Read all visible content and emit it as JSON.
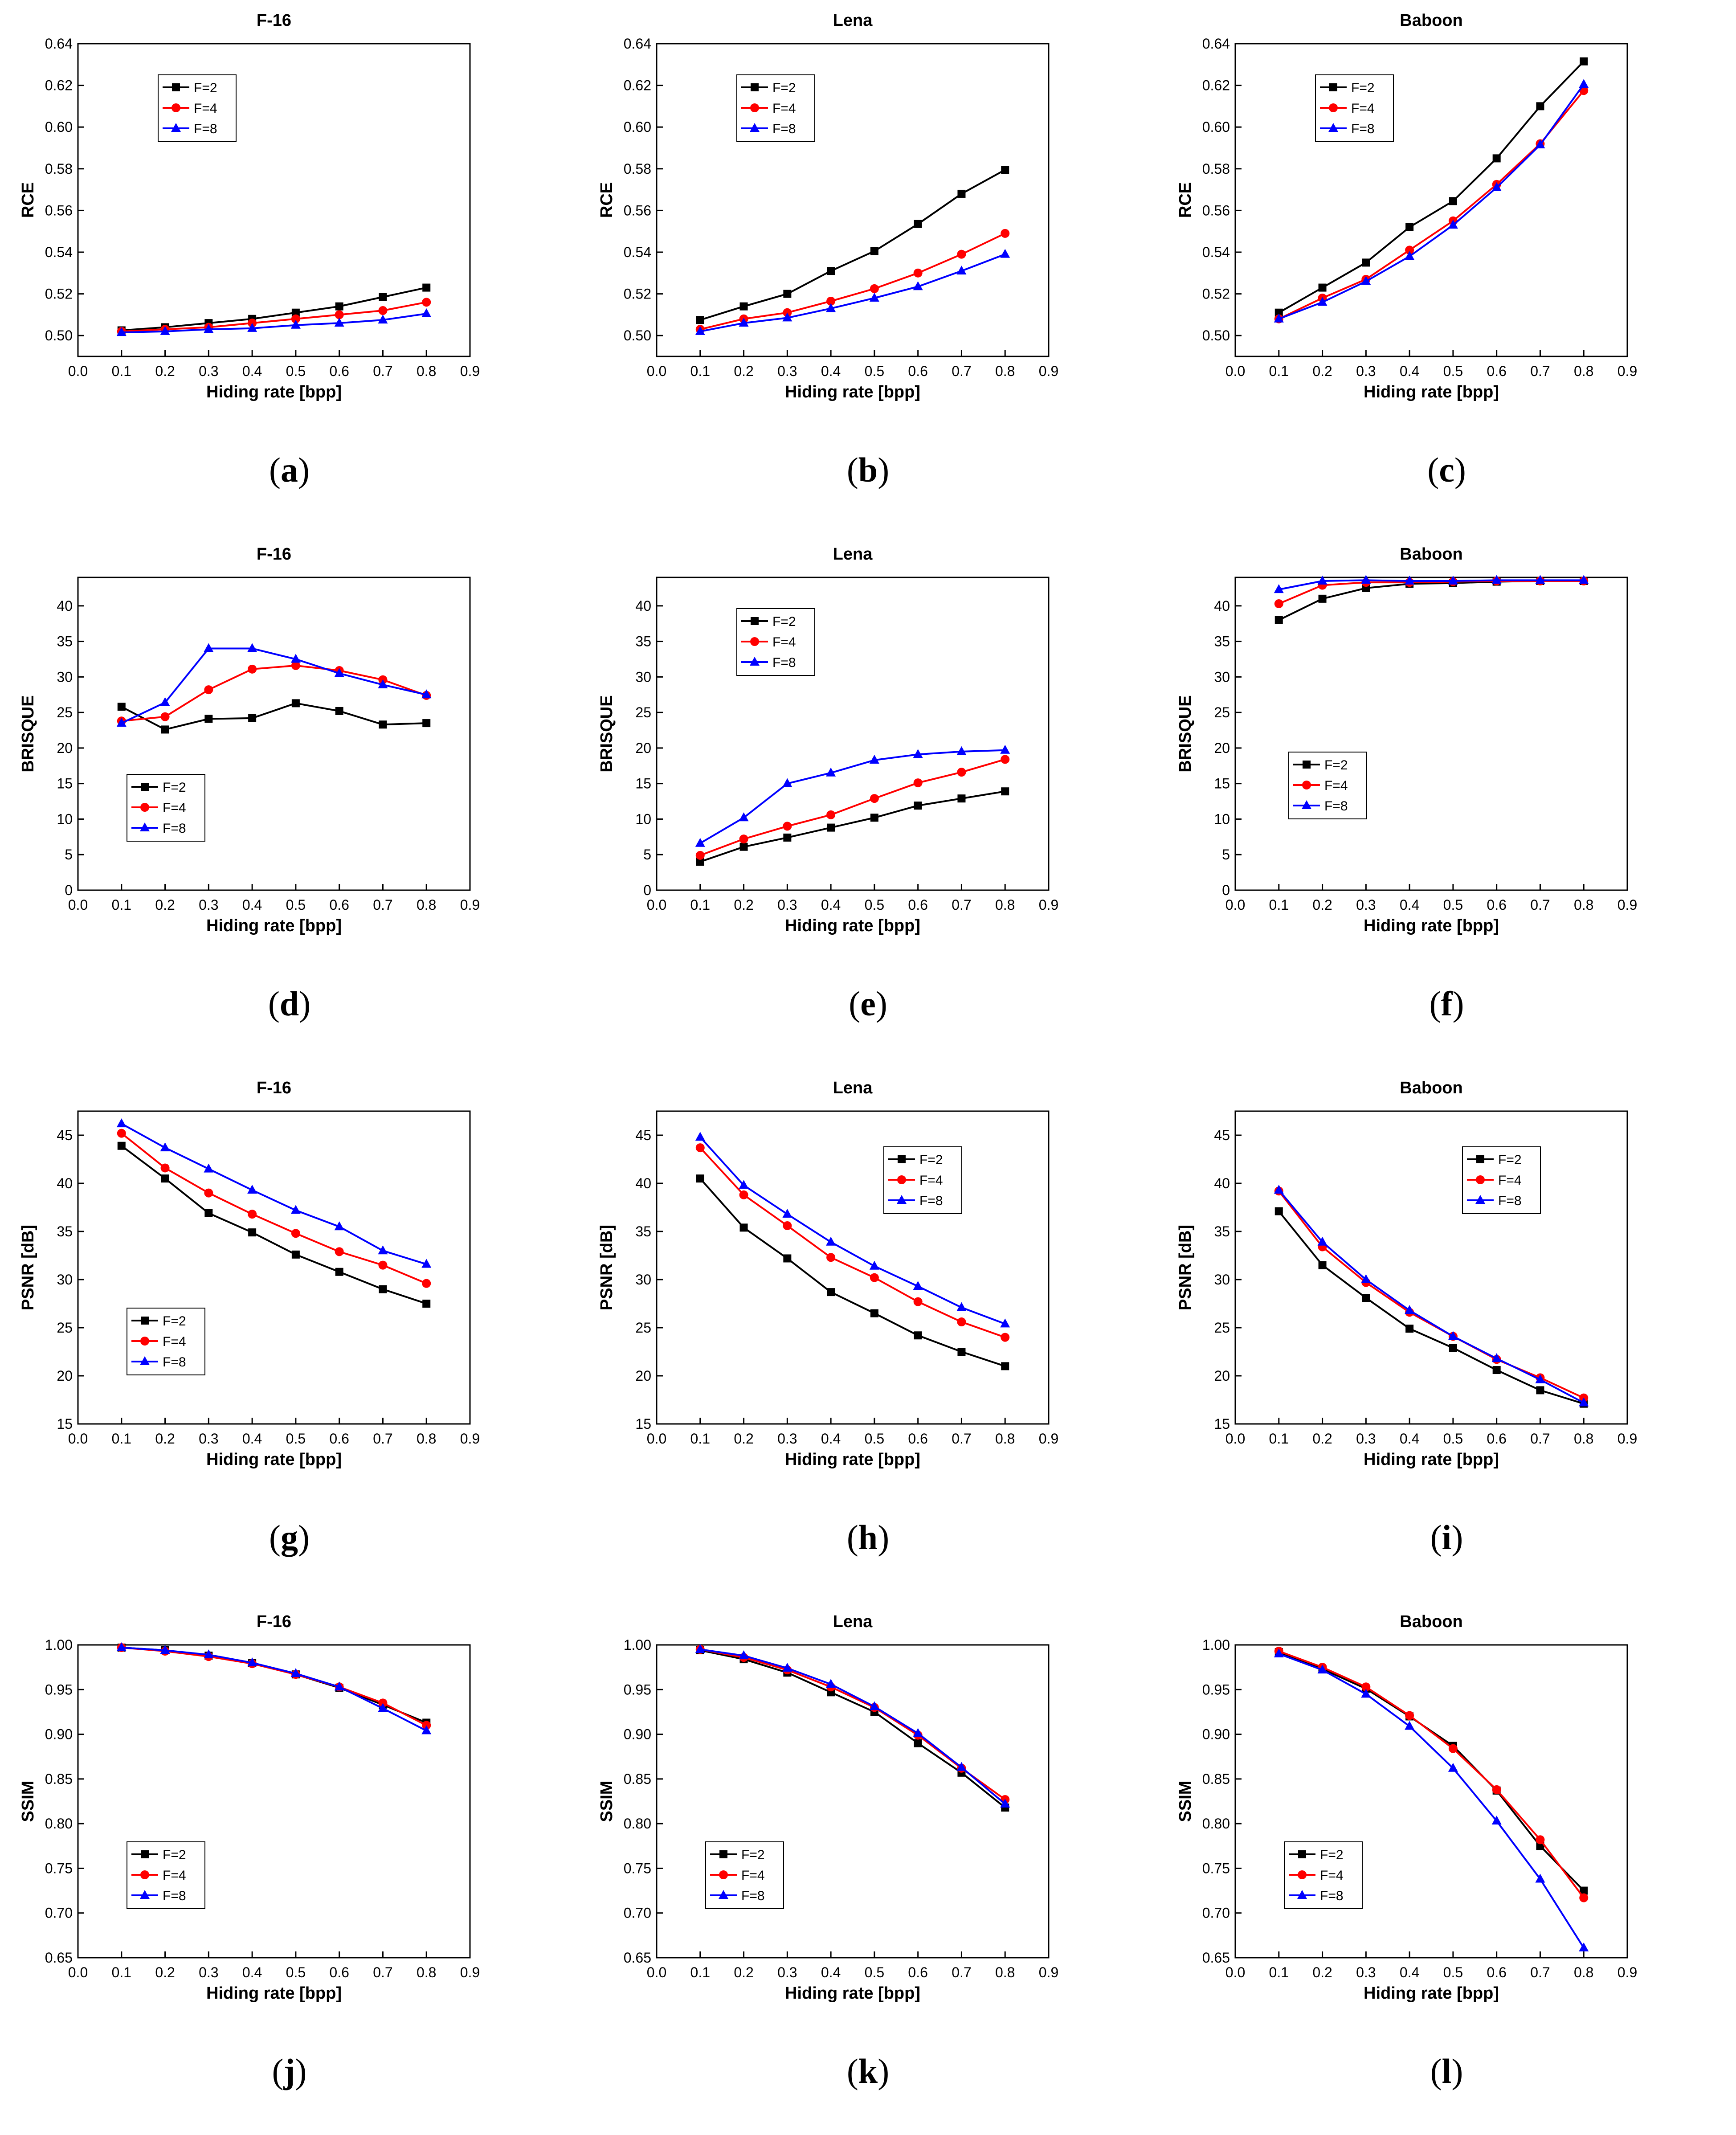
{
  "figure": {
    "series_names": [
      "F=2",
      "F=4",
      "F=8"
    ],
    "series_colors": [
      "#000000",
      "#ff0000",
      "#0000ff"
    ],
    "series_markers": [
      "square",
      "circle",
      "triangle"
    ]
  },
  "chart_data": [
    {
      "id": "a",
      "caption": "a",
      "type": "line",
      "title": "F-16",
      "xlabel": "Hiding rate [bpp]",
      "ylabel": "RCE",
      "xlim": [
        0,
        0.9
      ],
      "ylim": [
        0.49,
        0.64
      ],
      "xticks": [
        "0.0",
        "0.1",
        "0.2",
        "0.3",
        "0.4",
        "0.5",
        "0.6",
        "0.7",
        "0.8",
        "0.9"
      ],
      "yticks": [
        "0.50",
        "0.52",
        "0.54",
        "0.56",
        "0.58",
        "0.60",
        "0.62",
        "0.64"
      ],
      "legend": "top-left",
      "x": [
        0.1,
        0.2,
        0.3,
        0.4,
        0.5,
        0.6,
        0.7,
        0.8
      ],
      "series": [
        {
          "name": "F=2",
          "values": [
            0.5025,
            0.504,
            0.506,
            0.508,
            0.511,
            0.514,
            0.5185,
            0.523
          ]
        },
        {
          "name": "F=4",
          "values": [
            0.502,
            0.503,
            0.504,
            0.506,
            0.508,
            0.51,
            0.512,
            0.516
          ]
        },
        {
          "name": "F=8",
          "values": [
            0.5015,
            0.502,
            0.503,
            0.5035,
            0.505,
            0.506,
            0.5075,
            0.5105
          ]
        }
      ]
    },
    {
      "id": "b",
      "caption": "b",
      "type": "line",
      "title": "Lena",
      "xlabel": "Hiding rate [bpp]",
      "ylabel": "RCE",
      "xlim": [
        0,
        0.9
      ],
      "ylim": [
        0.49,
        0.64
      ],
      "xticks": [
        "0.0",
        "0.1",
        "0.2",
        "0.3",
        "0.4",
        "0.5",
        "0.6",
        "0.7",
        "0.8",
        "0.9"
      ],
      "yticks": [
        "0.50",
        "0.52",
        "0.54",
        "0.56",
        "0.58",
        "0.60",
        "0.62",
        "0.64"
      ],
      "legend": "top-left",
      "x": [
        0.1,
        0.2,
        0.3,
        0.4,
        0.5,
        0.6,
        0.7,
        0.8
      ],
      "series": [
        {
          "name": "F=2",
          "values": [
            0.5075,
            0.514,
            0.52,
            0.531,
            0.5405,
            0.5535,
            0.568,
            0.5795
          ]
        },
        {
          "name": "F=4",
          "values": [
            0.503,
            0.508,
            0.511,
            0.5165,
            0.5225,
            0.53,
            0.539,
            0.549
          ]
        },
        {
          "name": "F=8",
          "values": [
            0.502,
            0.506,
            0.5085,
            0.513,
            0.518,
            0.5235,
            0.531,
            0.539
          ]
        }
      ]
    },
    {
      "id": "c",
      "caption": "c",
      "type": "line",
      "title": "Baboon",
      "xlabel": "Hiding rate [bpp]",
      "ylabel": "RCE",
      "xlim": [
        0,
        0.9
      ],
      "ylim": [
        0.49,
        0.64
      ],
      "xticks": [
        "0.0",
        "0.1",
        "0.2",
        "0.3",
        "0.4",
        "0.5",
        "0.6",
        "0.7",
        "0.8",
        "0.9"
      ],
      "yticks": [
        "0.50",
        "0.52",
        "0.54",
        "0.56",
        "0.58",
        "0.60",
        "0.62",
        "0.64"
      ],
      "legend": "top-left",
      "x": [
        0.1,
        0.2,
        0.3,
        0.4,
        0.5,
        0.6,
        0.7,
        0.8
      ],
      "series": [
        {
          "name": "F=2",
          "values": [
            0.511,
            0.523,
            0.535,
            0.552,
            0.5645,
            0.585,
            0.61,
            0.6315
          ]
        },
        {
          "name": "F=4",
          "values": [
            0.508,
            0.518,
            0.527,
            0.541,
            0.555,
            0.5725,
            0.592,
            0.6175
          ]
        },
        {
          "name": "F=8",
          "values": [
            0.508,
            0.516,
            0.526,
            0.538,
            0.553,
            0.571,
            0.5915,
            0.6205
          ]
        }
      ]
    },
    {
      "id": "d",
      "caption": "d",
      "type": "line",
      "title": "F-16",
      "xlabel": "Hiding rate [bpp]",
      "ylabel": "BRISQUE",
      "xlim": [
        0,
        0.9
      ],
      "ylim": [
        0,
        44
      ],
      "xticks": [
        "0.0",
        "0.1",
        "0.2",
        "0.3",
        "0.4",
        "0.5",
        "0.6",
        "0.7",
        "0.8",
        "0.9"
      ],
      "yticks": [
        "0",
        "5",
        "10",
        "15",
        "20",
        "25",
        "30",
        "35",
        "40"
      ],
      "legend": "bottom-left",
      "x": [
        0.1,
        0.2,
        0.3,
        0.4,
        0.5,
        0.6,
        0.7,
        0.8
      ],
      "series": [
        {
          "name": "F=2",
          "values": [
            25.8,
            22.6,
            24.1,
            24.2,
            26.3,
            25.2,
            23.3,
            23.5
          ]
        },
        {
          "name": "F=4",
          "values": [
            23.8,
            24.4,
            28.2,
            31.1,
            31.6,
            30.9,
            29.6,
            27.4
          ]
        },
        {
          "name": "F=8",
          "values": [
            23.5,
            26.4,
            34.0,
            34.0,
            32.5,
            30.5,
            28.9,
            27.5
          ]
        }
      ]
    },
    {
      "id": "e",
      "caption": "e",
      "type": "line",
      "title": "Lena",
      "xlabel": "Hiding rate [bpp]",
      "ylabel": "BRISQUE",
      "xlim": [
        0,
        0.9
      ],
      "ylim": [
        0,
        44
      ],
      "xticks": [
        "0.0",
        "0.1",
        "0.2",
        "0.3",
        "0.4",
        "0.5",
        "0.6",
        "0.7",
        "0.8",
        "0.9"
      ],
      "yticks": [
        "0",
        "5",
        "10",
        "15",
        "20",
        "25",
        "30",
        "35",
        "40"
      ],
      "legend": "top-left",
      "x": [
        0.1,
        0.2,
        0.3,
        0.4,
        0.5,
        0.6,
        0.7,
        0.8
      ],
      "series": [
        {
          "name": "F=2",
          "values": [
            4.0,
            6.1,
            7.4,
            8.8,
            10.2,
            11.9,
            12.9,
            13.9
          ]
        },
        {
          "name": "F=4",
          "values": [
            4.9,
            7.2,
            9.0,
            10.6,
            12.9,
            15.1,
            16.6,
            18.4
          ]
        },
        {
          "name": "F=8",
          "values": [
            6.6,
            10.2,
            15.0,
            16.5,
            18.3,
            19.1,
            19.5,
            19.7
          ]
        }
      ]
    },
    {
      "id": "f",
      "caption": "f",
      "type": "line",
      "title": "Baboon",
      "xlabel": "Hiding rate [bpp]",
      "ylabel": "BRISQUE",
      "xlim": [
        0,
        0.9
      ],
      "ylim": [
        0,
        44
      ],
      "xticks": [
        "0.0",
        "0.1",
        "0.2",
        "0.3",
        "0.4",
        "0.5",
        "0.6",
        "0.7",
        "0.8",
        "0.9"
      ],
      "yticks": [
        "0",
        "5",
        "10",
        "15",
        "20",
        "25",
        "30",
        "35",
        "40"
      ],
      "legend": "bottom-left",
      "x": [
        0.1,
        0.2,
        0.3,
        0.4,
        0.5,
        0.6,
        0.7,
        0.8
      ],
      "series": [
        {
          "name": "F=2",
          "values": [
            38.0,
            41.0,
            42.5,
            43.1,
            43.2,
            43.4,
            43.5,
            43.5
          ]
        },
        {
          "name": "F=4",
          "values": [
            40.3,
            42.9,
            43.3,
            43.3,
            43.4,
            43.5,
            43.5,
            43.5
          ]
        },
        {
          "name": "F=8",
          "values": [
            42.3,
            43.5,
            43.6,
            43.5,
            43.5,
            43.6,
            43.6,
            43.6
          ]
        }
      ]
    },
    {
      "id": "g",
      "caption": "g",
      "type": "line",
      "title": "F-16",
      "xlabel": "Hiding rate [bpp]",
      "ylabel": "PSNR [dB]",
      "xlim": [
        0,
        0.9
      ],
      "ylim": [
        15,
        47.5
      ],
      "xticks": [
        "0.0",
        "0.1",
        "0.2",
        "0.3",
        "0.4",
        "0.5",
        "0.6",
        "0.7",
        "0.8",
        "0.9"
      ],
      "yticks": [
        "15",
        "20",
        "25",
        "30",
        "35",
        "40",
        "45"
      ],
      "legend": "bottom-left",
      "x": [
        0.1,
        0.2,
        0.3,
        0.4,
        0.5,
        0.6,
        0.7,
        0.8
      ],
      "series": [
        {
          "name": "F=2",
          "values": [
            43.9,
            40.5,
            36.9,
            34.9,
            32.6,
            30.8,
            29.0,
            27.5
          ]
        },
        {
          "name": "F=4",
          "values": [
            45.2,
            41.6,
            39.0,
            36.8,
            34.8,
            32.9,
            31.5,
            29.6
          ]
        },
        {
          "name": "F=8",
          "values": [
            46.2,
            43.7,
            41.5,
            39.3,
            37.2,
            35.5,
            33.0,
            31.6
          ]
        }
      ]
    },
    {
      "id": "h",
      "caption": "h",
      "type": "line",
      "title": "Lena",
      "xlabel": "Hiding rate [bpp]",
      "ylabel": "PSNR [dB]",
      "xlim": [
        0,
        0.9
      ],
      "ylim": [
        15,
        47.5
      ],
      "xticks": [
        "0.0",
        "0.1",
        "0.2",
        "0.3",
        "0.4",
        "0.5",
        "0.6",
        "0.7",
        "0.8",
        "0.9"
      ],
      "yticks": [
        "15",
        "20",
        "25",
        "30",
        "35",
        "40",
        "45"
      ],
      "legend": "top-right",
      "x": [
        0.1,
        0.2,
        0.3,
        0.4,
        0.5,
        0.6,
        0.7,
        0.8
      ],
      "series": [
        {
          "name": "F=2",
          "values": [
            40.5,
            35.4,
            32.2,
            28.7,
            26.5,
            24.2,
            22.5,
            21.0
          ]
        },
        {
          "name": "F=4",
          "values": [
            43.7,
            38.8,
            35.6,
            32.3,
            30.2,
            27.7,
            25.6,
            24.0
          ]
        },
        {
          "name": "F=8",
          "values": [
            44.8,
            39.8,
            36.8,
            33.9,
            31.4,
            29.3,
            27.1,
            25.4
          ]
        }
      ]
    },
    {
      "id": "i",
      "caption": "i",
      "type": "line",
      "title": "Baboon",
      "xlabel": "Hiding rate [bpp]",
      "ylabel": "PSNR [dB]",
      "xlim": [
        0,
        0.9
      ],
      "ylim": [
        15,
        47.5
      ],
      "xticks": [
        "0.0",
        "0.1",
        "0.2",
        "0.3",
        "0.4",
        "0.5",
        "0.6",
        "0.7",
        "0.8",
        "0.9"
      ],
      "yticks": [
        "15",
        "20",
        "25",
        "30",
        "35",
        "40",
        "45"
      ],
      "legend": "top-right",
      "x": [
        0.1,
        0.2,
        0.3,
        0.4,
        0.5,
        0.6,
        0.7,
        0.8
      ],
      "series": [
        {
          "name": "F=2",
          "values": [
            37.1,
            31.5,
            28.1,
            24.9,
            22.9,
            20.6,
            18.5,
            17.1
          ]
        },
        {
          "name": "F=4",
          "values": [
            39.2,
            33.4,
            29.7,
            26.6,
            24.1,
            21.7,
            19.8,
            17.7
          ]
        },
        {
          "name": "F=8",
          "values": [
            39.3,
            33.9,
            30.0,
            26.8,
            24.1,
            21.8,
            19.6,
            17.2
          ]
        }
      ]
    },
    {
      "id": "j",
      "caption": "j",
      "type": "line",
      "title": "F-16",
      "xlabel": "Hiding rate [bpp]",
      "ylabel": "SSIM",
      "xlim": [
        0,
        0.9
      ],
      "ylim": [
        0.65,
        1.0
      ],
      "xticks": [
        "0.0",
        "0.1",
        "0.2",
        "0.3",
        "0.4",
        "0.5",
        "0.6",
        "0.7",
        "0.8",
        "0.9"
      ],
      "yticks": [
        "0.65",
        "0.70",
        "0.75",
        "0.80",
        "0.85",
        "0.90",
        "0.95",
        "1.00"
      ],
      "legend": "bottom-left",
      "x": [
        0.1,
        0.2,
        0.3,
        0.4,
        0.5,
        0.6,
        0.7,
        0.8
      ],
      "series": [
        {
          "name": "F=2",
          "values": [
            0.997,
            0.994,
            0.988,
            0.98,
            0.967,
            0.952,
            0.933,
            0.913
          ]
        },
        {
          "name": "F=4",
          "values": [
            0.997,
            0.993,
            0.987,
            0.979,
            0.967,
            0.953,
            0.935,
            0.91
          ]
        },
        {
          "name": "F=8",
          "values": [
            0.997,
            0.994,
            0.989,
            0.98,
            0.968,
            0.953,
            0.929,
            0.904
          ]
        }
      ]
    },
    {
      "id": "k",
      "caption": "k",
      "type": "line",
      "title": "Lena",
      "xlabel": "Hiding rate [bpp]",
      "ylabel": "SSIM",
      "xlim": [
        0,
        0.9
      ],
      "ylim": [
        0.65,
        1.0
      ],
      "xticks": [
        "0.0",
        "0.1",
        "0.2",
        "0.3",
        "0.4",
        "0.5",
        "0.6",
        "0.7",
        "0.8",
        "0.9"
      ],
      "yticks": [
        "0.65",
        "0.70",
        "0.75",
        "0.80",
        "0.85",
        "0.90",
        "0.95",
        "1.00"
      ],
      "legend": "bottom-left",
      "x": [
        0.1,
        0.2,
        0.3,
        0.4,
        0.5,
        0.6,
        0.7,
        0.8
      ],
      "series": [
        {
          "name": "F=2",
          "values": [
            0.994,
            0.984,
            0.969,
            0.947,
            0.925,
            0.89,
            0.857,
            0.818
          ]
        },
        {
          "name": "F=4",
          "values": [
            0.995,
            0.986,
            0.972,
            0.953,
            0.93,
            0.899,
            0.862,
            0.827
          ]
        },
        {
          "name": "F=8",
          "values": [
            0.995,
            0.988,
            0.974,
            0.956,
            0.931,
            0.901,
            0.863,
            0.822
          ]
        }
      ]
    },
    {
      "id": "l",
      "caption": "l",
      "type": "line",
      "title": "Baboon",
      "xlabel": "Hiding rate [bpp]",
      "ylabel": "SSIM",
      "xlim": [
        0,
        0.9
      ],
      "ylim": [
        0.65,
        1.0
      ],
      "xticks": [
        "0.0",
        "0.1",
        "0.2",
        "0.3",
        "0.4",
        "0.5",
        "0.6",
        "0.7",
        "0.8",
        "0.9"
      ],
      "yticks": [
        "0.65",
        "0.70",
        "0.75",
        "0.80",
        "0.85",
        "0.90",
        "0.95",
        "1.00"
      ],
      "legend": "bottom-left",
      "x": [
        0.1,
        0.2,
        0.3,
        0.4,
        0.5,
        0.6,
        0.7,
        0.8
      ],
      "series": [
        {
          "name": "F=2",
          "values": [
            0.992,
            0.973,
            0.951,
            0.92,
            0.887,
            0.837,
            0.775,
            0.725
          ]
        },
        {
          "name": "F=4",
          "values": [
            0.993,
            0.975,
            0.953,
            0.921,
            0.884,
            0.838,
            0.782,
            0.717
          ]
        },
        {
          "name": "F=8",
          "values": [
            0.99,
            0.972,
            0.945,
            0.909,
            0.862,
            0.803,
            0.738,
            0.661
          ]
        }
      ]
    }
  ]
}
